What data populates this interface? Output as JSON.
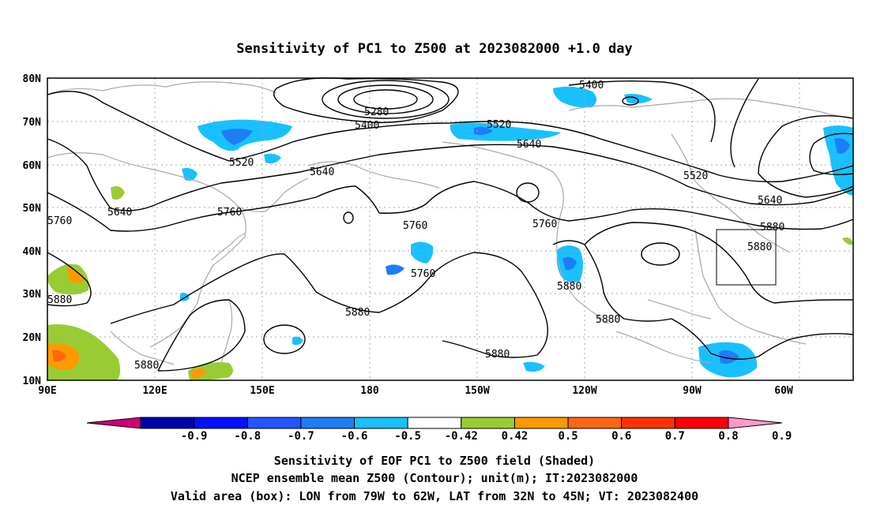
{
  "title": "Sensitivity of PC1 to Z500 at 2023082000 +1.0 day",
  "map": {
    "lat_labels": [
      "80N",
      "70N",
      "60N",
      "50N",
      "40N",
      "30N",
      "20N",
      "10N"
    ],
    "lon_labels": [
      "90E",
      "120E",
      "150E",
      "180",
      "150W",
      "120W",
      "90W",
      "60W"
    ],
    "contour_color": "#000000",
    "coast_color": "#a8a8a8",
    "grid_color": "#a8a8a8",
    "contour_labels": [
      "5400",
      "5280",
      "5400",
      "5520",
      "5640",
      "5520",
      "5640",
      "5640",
      "5760",
      "5760",
      "5760",
      "5520",
      "5640",
      "5760",
      "5880",
      "5880",
      "5760",
      "5880",
      "5880",
      "5880",
      "5880",
      "5880",
      "5880"
    ],
    "valid_box": {
      "lon_west": "79W",
      "lon_east": "62W",
      "lat_south": "32N",
      "lat_north": "45N"
    }
  },
  "colorbar": {
    "labels": [
      "-0.9",
      "-0.8",
      "-0.7",
      "-0.6",
      "-0.5",
      "-0.42",
      "0.42",
      "0.5",
      "0.6",
      "0.7",
      "0.8",
      "0.9"
    ],
    "colors": [
      "#cc0077",
      "#0000aa",
      "#0011ff",
      "#2255ff",
      "#1e7df5",
      "#18c0ff",
      "#ffffff",
      "#99cc33",
      "#ff9900",
      "#ff6611",
      "#ff3300",
      "#ff0000",
      "#ff99cc"
    ]
  },
  "footer": {
    "line1": "Sensitivity of EOF PC1 to Z500 field (Shaded)",
    "line2": "NCEP ensemble mean Z500 (Contour); unit(m); IT:2023082000",
    "line3": "Valid area (box): LON from 79W to 62W, LAT from 32N to 45N; VT: 2023082400"
  }
}
